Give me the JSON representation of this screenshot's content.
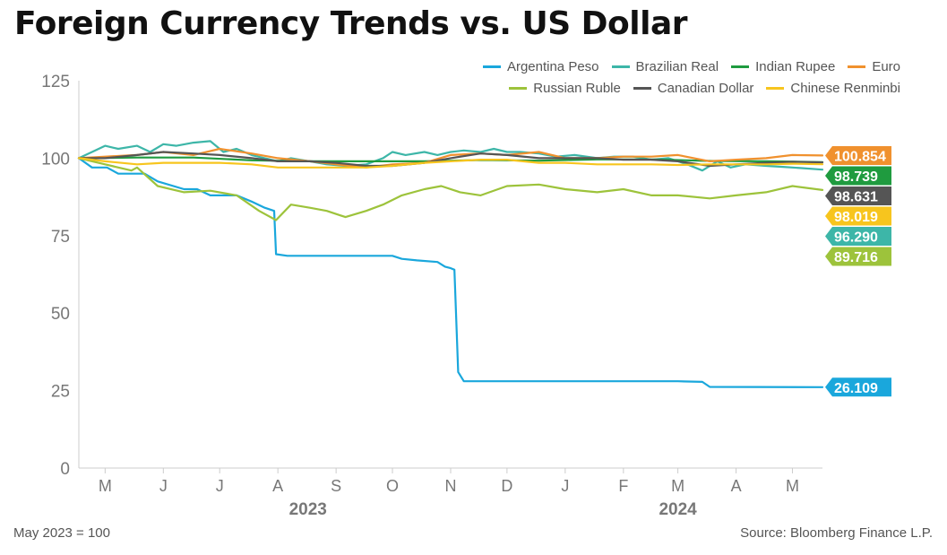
{
  "title": "Foreign Currency Trends vs. US Dollar",
  "footer": {
    "note": "May 2023 = 100",
    "source": "Source: Bloomberg Finance L.P."
  },
  "chart_data": {
    "type": "line",
    "title": "Foreign Currency Trends vs. US Dollar",
    "xlabel": "",
    "ylabel": "",
    "ylim": [
      0,
      125
    ],
    "y_ticks": [
      0,
      25,
      50,
      75,
      100,
      125
    ],
    "x_range": [
      "2023-05-01",
      "2024-05-31"
    ],
    "x_ticks": [
      {
        "date": "2023-05-15",
        "label": "M"
      },
      {
        "date": "2023-06-15",
        "label": "J"
      },
      {
        "date": "2023-07-15",
        "label": "J"
      },
      {
        "date": "2023-08-15",
        "label": "A"
      },
      {
        "date": "2023-09-15",
        "label": "S"
      },
      {
        "date": "2023-10-15",
        "label": "O"
      },
      {
        "date": "2023-11-15",
        "label": "N"
      },
      {
        "date": "2023-12-15",
        "label": "D"
      },
      {
        "date": "2024-01-15",
        "label": "J"
      },
      {
        "date": "2024-02-15",
        "label": "F"
      },
      {
        "date": "2024-03-15",
        "label": "M"
      },
      {
        "date": "2024-04-15",
        "label": "A"
      },
      {
        "date": "2024-05-15",
        "label": "M"
      }
    ],
    "year_labels": [
      {
        "date": "2023-08-31",
        "label": "2023"
      },
      {
        "date": "2024-03-15",
        "label": "2024"
      }
    ],
    "grid": false,
    "legend_position": "top-right",
    "series": [
      {
        "name": "Argentina Peso",
        "color": "#1aa7dc",
        "end_label": "26.109",
        "label_text_color": "#ffffff",
        "points": [
          [
            "2023-05-01",
            100
          ],
          [
            "2023-05-08",
            97
          ],
          [
            "2023-05-16",
            97
          ],
          [
            "2023-05-22",
            95
          ],
          [
            "2023-06-05",
            95
          ],
          [
            "2023-06-12",
            92.5
          ],
          [
            "2023-06-26",
            90
          ],
          [
            "2023-07-03",
            90
          ],
          [
            "2023-07-10",
            88
          ],
          [
            "2023-07-24",
            88
          ],
          [
            "2023-08-01",
            86
          ],
          [
            "2023-08-08",
            84
          ],
          [
            "2023-08-13",
            83
          ],
          [
            "2023-08-14",
            69
          ],
          [
            "2023-08-20",
            68.5
          ],
          [
            "2023-10-15",
            68.5
          ],
          [
            "2023-10-20",
            67.5
          ],
          [
            "2023-10-28",
            67
          ],
          [
            "2023-11-08",
            66.5
          ],
          [
            "2023-11-12",
            65
          ],
          [
            "2023-11-15",
            64.5
          ],
          [
            "2023-11-17",
            64
          ],
          [
            "2023-11-19",
            31
          ],
          [
            "2023-11-22",
            28
          ],
          [
            "2024-03-15",
            28
          ],
          [
            "2024-03-28",
            27.8
          ],
          [
            "2024-04-01",
            26.2
          ],
          [
            "2024-05-31",
            26.109
          ]
        ]
      },
      {
        "name": "Brazilian Real",
        "color": "#3db6a8",
        "end_label": "96.290",
        "label_text_color": "#ffffff",
        "points": [
          [
            "2023-05-01",
            100
          ],
          [
            "2023-05-08",
            102
          ],
          [
            "2023-05-15",
            104
          ],
          [
            "2023-05-22",
            103
          ],
          [
            "2023-06-01",
            104
          ],
          [
            "2023-06-08",
            102
          ],
          [
            "2023-06-15",
            104.5
          ],
          [
            "2023-06-22",
            104
          ],
          [
            "2023-07-01",
            105
          ],
          [
            "2023-07-10",
            105.5
          ],
          [
            "2023-07-17",
            102
          ],
          [
            "2023-07-24",
            103
          ],
          [
            "2023-08-01",
            101
          ],
          [
            "2023-08-08",
            100
          ],
          [
            "2023-08-15",
            99
          ],
          [
            "2023-08-22",
            100
          ],
          [
            "2023-09-01",
            99
          ],
          [
            "2023-09-10",
            98
          ],
          [
            "2023-09-20",
            97.5
          ],
          [
            "2023-10-01",
            98
          ],
          [
            "2023-10-10",
            100
          ],
          [
            "2023-10-15",
            102
          ],
          [
            "2023-10-22",
            101
          ],
          [
            "2023-11-01",
            102
          ],
          [
            "2023-11-08",
            101
          ],
          [
            "2023-11-15",
            102
          ],
          [
            "2023-11-22",
            102.5
          ],
          [
            "2023-12-01",
            102
          ],
          [
            "2023-12-08",
            103
          ],
          [
            "2023-12-15",
            102
          ],
          [
            "2023-12-22",
            102
          ],
          [
            "2024-01-01",
            101.5
          ],
          [
            "2024-01-10",
            100.5
          ],
          [
            "2024-01-20",
            101
          ],
          [
            "2024-02-01",
            100
          ],
          [
            "2024-02-10",
            100.5
          ],
          [
            "2024-02-20",
            100.5
          ],
          [
            "2024-03-01",
            99.5
          ],
          [
            "2024-03-10",
            100
          ],
          [
            "2024-03-20",
            98
          ],
          [
            "2024-03-28",
            96
          ],
          [
            "2024-04-05",
            99
          ],
          [
            "2024-04-12",
            97
          ],
          [
            "2024-04-20",
            98
          ],
          [
            "2024-05-01",
            97.5
          ],
          [
            "2024-05-10",
            97.2
          ],
          [
            "2024-05-20",
            96.8
          ],
          [
            "2024-05-31",
            96.29
          ]
        ]
      },
      {
        "name": "Indian Rupee",
        "color": "#1f9b3f",
        "end_label": "98.739",
        "label_text_color": "#ffffff",
        "points": [
          [
            "2023-05-01",
            100
          ],
          [
            "2023-06-01",
            100.2
          ],
          [
            "2023-07-01",
            100.2
          ],
          [
            "2023-08-01",
            99.3
          ],
          [
            "2023-09-01",
            99
          ],
          [
            "2023-10-01",
            99
          ],
          [
            "2023-11-01",
            99
          ],
          [
            "2023-12-01",
            99.4
          ],
          [
            "2024-01-01",
            99.2
          ],
          [
            "2024-02-01",
            99.6
          ],
          [
            "2024-03-01",
            99.6
          ],
          [
            "2024-04-01",
            99.1
          ],
          [
            "2024-05-01",
            99
          ],
          [
            "2024-05-31",
            98.739
          ]
        ]
      },
      {
        "name": "Euro",
        "color": "#f0912e",
        "end_label": "100.854",
        "label_text_color": "#ffffff",
        "points": [
          [
            "2023-05-01",
            100
          ],
          [
            "2023-05-15",
            100.5
          ],
          [
            "2023-06-01",
            101
          ],
          [
            "2023-06-15",
            102
          ],
          [
            "2023-07-01",
            101
          ],
          [
            "2023-07-15",
            103
          ],
          [
            "2023-08-01",
            101.5
          ],
          [
            "2023-08-15",
            100
          ],
          [
            "2023-09-01",
            99
          ],
          [
            "2023-09-15",
            98
          ],
          [
            "2023-10-01",
            97
          ],
          [
            "2023-10-15",
            98
          ],
          [
            "2023-11-01",
            98.5
          ],
          [
            "2023-11-15",
            101
          ],
          [
            "2023-12-01",
            101.5
          ],
          [
            "2023-12-15",
            101
          ],
          [
            "2024-01-01",
            102
          ],
          [
            "2024-01-15",
            100
          ],
          [
            "2024-02-01",
            100
          ],
          [
            "2024-02-15",
            100.5
          ],
          [
            "2024-03-01",
            100.5
          ],
          [
            "2024-03-15",
            101
          ],
          [
            "2024-04-01",
            99
          ],
          [
            "2024-04-15",
            99.5
          ],
          [
            "2024-05-01",
            100
          ],
          [
            "2024-05-15",
            101
          ],
          [
            "2024-05-31",
            100.854
          ]
        ]
      },
      {
        "name": "Russian Ruble",
        "color": "#9dc33b",
        "end_label": "89.716",
        "label_text_color": "#ffffff",
        "points": [
          [
            "2023-05-01",
            100
          ],
          [
            "2023-05-15",
            98
          ],
          [
            "2023-05-29",
            96
          ],
          [
            "2023-06-01",
            97
          ],
          [
            "2023-06-12",
            91
          ],
          [
            "2023-06-26",
            89
          ],
          [
            "2023-07-10",
            89.5
          ],
          [
            "2023-07-24",
            88
          ],
          [
            "2023-08-05",
            83
          ],
          [
            "2023-08-14",
            80
          ],
          [
            "2023-08-22",
            85
          ],
          [
            "2023-09-01",
            84
          ],
          [
            "2023-09-10",
            83
          ],
          [
            "2023-09-20",
            81
          ],
          [
            "2023-10-01",
            83
          ],
          [
            "2023-10-10",
            85
          ],
          [
            "2023-10-20",
            88
          ],
          [
            "2023-11-01",
            90
          ],
          [
            "2023-11-10",
            91
          ],
          [
            "2023-11-20",
            89
          ],
          [
            "2023-12-01",
            88
          ],
          [
            "2023-12-15",
            91
          ],
          [
            "2024-01-01",
            91.5
          ],
          [
            "2024-01-15",
            90
          ],
          [
            "2024-02-01",
            89
          ],
          [
            "2024-02-15",
            90
          ],
          [
            "2024-03-01",
            88
          ],
          [
            "2024-03-15",
            88
          ],
          [
            "2024-04-01",
            87
          ],
          [
            "2024-04-15",
            88
          ],
          [
            "2024-05-01",
            89
          ],
          [
            "2024-05-15",
            91
          ],
          [
            "2024-05-31",
            89.716
          ]
        ]
      },
      {
        "name": "Canadian Dollar",
        "color": "#555555",
        "end_label": "98.631",
        "label_text_color": "#ffffff",
        "points": [
          [
            "2023-05-01",
            100
          ],
          [
            "2023-05-15",
            100
          ],
          [
            "2023-06-01",
            101
          ],
          [
            "2023-06-15",
            102
          ],
          [
            "2023-07-01",
            101.5
          ],
          [
            "2023-07-15",
            101
          ],
          [
            "2023-08-01",
            100
          ],
          [
            "2023-08-15",
            99
          ],
          [
            "2023-09-01",
            99
          ],
          [
            "2023-09-15",
            98.5
          ],
          [
            "2023-10-01",
            97.5
          ],
          [
            "2023-10-15",
            97.5
          ],
          [
            "2023-11-01",
            98.5
          ],
          [
            "2023-11-15",
            100
          ],
          [
            "2023-12-01",
            101.5
          ],
          [
            "2023-12-15",
            101
          ],
          [
            "2024-01-01",
            100
          ],
          [
            "2024-01-15",
            100
          ],
          [
            "2024-02-01",
            100
          ],
          [
            "2024-02-15",
            99.5
          ],
          [
            "2024-03-01",
            99.5
          ],
          [
            "2024-03-15",
            99
          ],
          [
            "2024-04-01",
            97.5
          ],
          [
            "2024-04-15",
            98
          ],
          [
            "2024-05-01",
            98.5
          ],
          [
            "2024-05-15",
            98.8
          ],
          [
            "2024-05-31",
            98.631
          ]
        ]
      },
      {
        "name": "Chinese Renminbi",
        "color": "#f7c51e",
        "end_label": "98.019",
        "label_text_color": "#ffffff",
        "points": [
          [
            "2023-05-01",
            100
          ],
          [
            "2023-05-15",
            99
          ],
          [
            "2023-06-01",
            98
          ],
          [
            "2023-06-15",
            98.5
          ],
          [
            "2023-07-01",
            98.5
          ],
          [
            "2023-07-15",
            98.5
          ],
          [
            "2023-08-01",
            98
          ],
          [
            "2023-08-15",
            97
          ],
          [
            "2023-09-01",
            97
          ],
          [
            "2023-09-15",
            97
          ],
          [
            "2023-10-01",
            97
          ],
          [
            "2023-10-15",
            97.5
          ],
          [
            "2023-11-01",
            98.5
          ],
          [
            "2023-11-15",
            99
          ],
          [
            "2023-12-01",
            99.5
          ],
          [
            "2023-12-15",
            99.5
          ],
          [
            "2024-01-01",
            98.5
          ],
          [
            "2024-01-15",
            98.5
          ],
          [
            "2024-02-01",
            98
          ],
          [
            "2024-02-15",
            98
          ],
          [
            "2024-03-01",
            98
          ],
          [
            "2024-03-15",
            97.8
          ],
          [
            "2024-04-01",
            98
          ],
          [
            "2024-04-15",
            98
          ],
          [
            "2024-05-01",
            98
          ],
          [
            "2024-05-15",
            98.2
          ],
          [
            "2024-05-31",
            98.019
          ]
        ]
      }
    ]
  }
}
